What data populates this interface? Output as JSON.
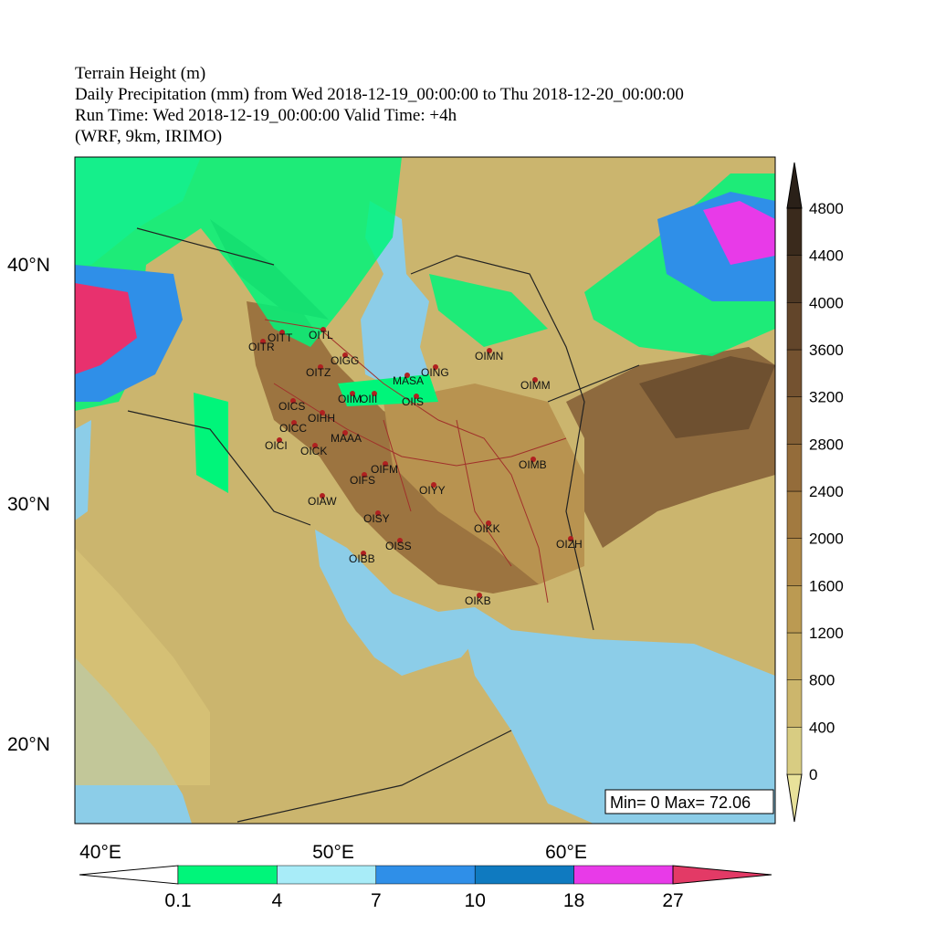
{
  "header": {
    "lines": [
      "Terrain Height (m)",
      "Daily Precipitation (mm) from Wed 2018-12-19_00:00:00 to Thu 2018-12-20_00:00:00",
      "Run Time:  Wed 2018-12-19_00:00:00    Valid Time: +4h",
      "(WRF, 9km, IRIMO)"
    ]
  },
  "map": {
    "lat_labels": [
      "40°N",
      "30°N",
      "20°N"
    ],
    "lon_labels": [
      "40°E",
      "50°E",
      "60°E"
    ],
    "stations": [
      "OITR",
      "OITT",
      "OITL",
      "OIGG",
      "OITZ",
      "MASA",
      "OING",
      "OIMN",
      "OIMM",
      "OIIM",
      "OIII",
      "OIIS",
      "OICS",
      "OIHH",
      "OICC",
      "MAAA",
      "OICI",
      "OICK",
      "OIMB",
      "OIFM",
      "OIFS",
      "OIYY",
      "OIAW",
      "OISY",
      "OIKK",
      "OISS",
      "OIZH",
      "OIBB",
      "OIKB"
    ],
    "annotation": "Min= 0 Max= 72.06"
  },
  "terrain_colorbar": {
    "labels": [
      0,
      400,
      800,
      1200,
      1600,
      2000,
      2400,
      2800,
      3200,
      3600,
      4000,
      4400,
      4800
    ]
  },
  "precip_colorbar": {
    "labels": [
      0.1,
      4,
      7,
      10,
      18,
      27
    ]
  }
}
